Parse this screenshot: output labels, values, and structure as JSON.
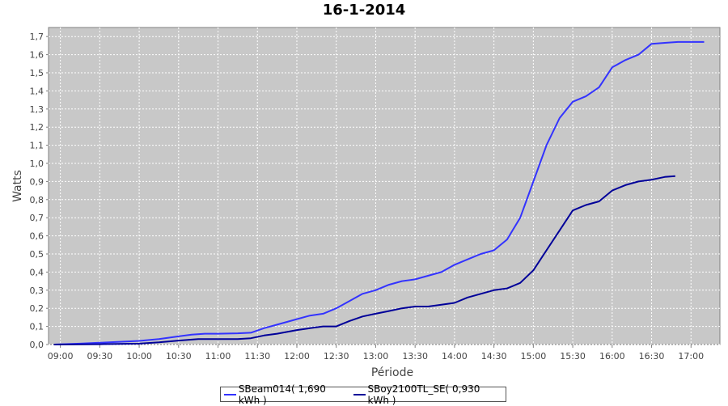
{
  "chart_data": {
    "type": "line",
    "title": "16-1-2014",
    "xlabel": "Période",
    "ylabel": "Watts",
    "xlim": [
      "08:51",
      "17:22"
    ],
    "ylim": [
      0.0,
      1.75
    ],
    "grid": true,
    "legend_position": "bottom",
    "background": "#c8c8c8",
    "x_ticks": [
      "09:00",
      "09:30",
      "10:00",
      "10:30",
      "11:00",
      "11:30",
      "12:00",
      "12:30",
      "13:00",
      "13:30",
      "14:00",
      "14:30",
      "15:00",
      "15:30",
      "16:00",
      "16:30",
      "17:00"
    ],
    "y_ticks": [
      "0,0",
      "0,1",
      "0,2",
      "0,3",
      "0,4",
      "0,5",
      "0,6",
      "0,7",
      "0,8",
      "0,9",
      "1,0",
      "1,1",
      "1,2",
      "1,3",
      "1,4",
      "1,5",
      "1,6",
      "1,7"
    ],
    "series": [
      {
        "name": "SBeam014( 1,690 kWh )",
        "color": "#3333ff",
        "x": [
          "08:55",
          "09:15",
          "09:30",
          "09:45",
          "10:00",
          "10:15",
          "10:30",
          "10:40",
          "10:50",
          "11:00",
          "11:15",
          "11:25",
          "11:35",
          "11:45",
          "12:00",
          "12:10",
          "12:20",
          "12:30",
          "12:40",
          "12:50",
          "13:00",
          "13:10",
          "13:20",
          "13:30",
          "13:40",
          "13:50",
          "14:00",
          "14:10",
          "14:20",
          "14:30",
          "14:40",
          "14:50",
          "15:00",
          "15:10",
          "15:20",
          "15:30",
          "15:40",
          "15:50",
          "16:00",
          "16:10",
          "16:20",
          "16:30",
          "16:40",
          "16:50",
          "17:00",
          "17:10"
        ],
        "y": [
          0.0,
          0.005,
          0.01,
          0.015,
          0.02,
          0.03,
          0.045,
          0.055,
          0.06,
          0.06,
          0.062,
          0.065,
          0.09,
          0.11,
          0.14,
          0.16,
          0.17,
          0.2,
          0.24,
          0.28,
          0.3,
          0.33,
          0.35,
          0.36,
          0.38,
          0.4,
          0.44,
          0.47,
          0.5,
          0.52,
          0.58,
          0.7,
          0.9,
          1.1,
          1.25,
          1.34,
          1.37,
          1.42,
          1.53,
          1.57,
          1.6,
          1.66,
          1.665,
          1.67,
          1.67,
          1.67
        ]
      },
      {
        "name": "SBoy2100TL_SE( 0,930 kWh )",
        "color": "#000099",
        "x": [
          "08:55",
          "09:30",
          "10:00",
          "10:15",
          "10:30",
          "10:45",
          "11:00",
          "11:15",
          "11:25",
          "11:35",
          "11:45",
          "12:00",
          "12:10",
          "12:20",
          "12:30",
          "12:40",
          "12:50",
          "13:00",
          "13:10",
          "13:20",
          "13:30",
          "13:40",
          "13:50",
          "14:00",
          "14:10",
          "14:20",
          "14:30",
          "14:40",
          "14:50",
          "15:00",
          "15:10",
          "15:20",
          "15:30",
          "15:40",
          "15:50",
          "16:00",
          "16:10",
          "16:20",
          "16:30",
          "16:40",
          "16:48"
        ],
        "y": [
          0.0,
          0.002,
          0.005,
          0.012,
          0.022,
          0.03,
          0.03,
          0.03,
          0.035,
          0.05,
          0.06,
          0.08,
          0.09,
          0.1,
          0.1,
          0.13,
          0.155,
          0.17,
          0.185,
          0.2,
          0.21,
          0.21,
          0.22,
          0.23,
          0.26,
          0.28,
          0.3,
          0.31,
          0.34,
          0.41,
          0.52,
          0.63,
          0.74,
          0.77,
          0.79,
          0.85,
          0.88,
          0.9,
          0.91,
          0.925,
          0.93
        ]
      }
    ]
  }
}
